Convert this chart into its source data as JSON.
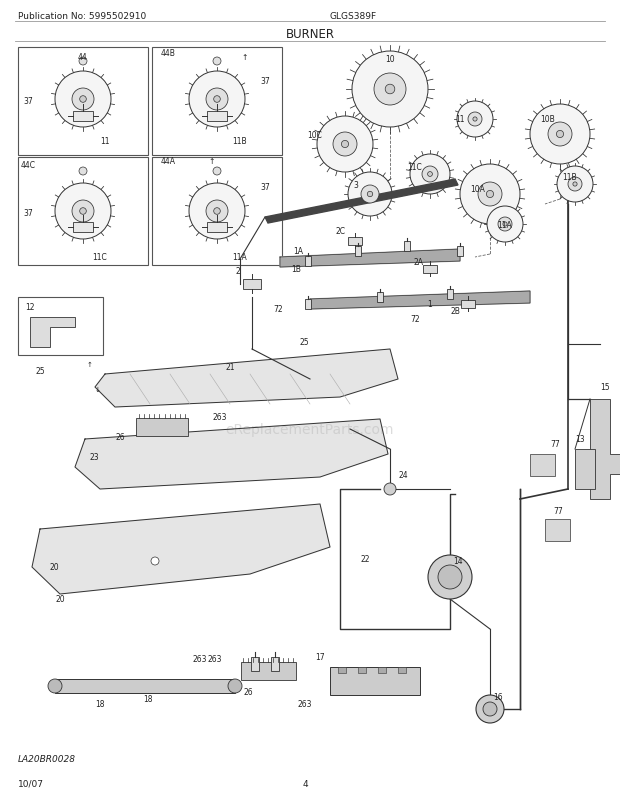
{
  "title": "BURNER",
  "pub_no": "Publication No: 5995502910",
  "model": "GLGS389F",
  "page": "4",
  "date": "10/07",
  "diagram_code": "LA20BR0028",
  "watermark": "eReplacementParts.com",
  "bg_color": "#ffffff",
  "text_color": "#222222",
  "line_color": "#333333",
  "fig_w": 6.2,
  "fig_h": 8.03,
  "dpi": 100
}
